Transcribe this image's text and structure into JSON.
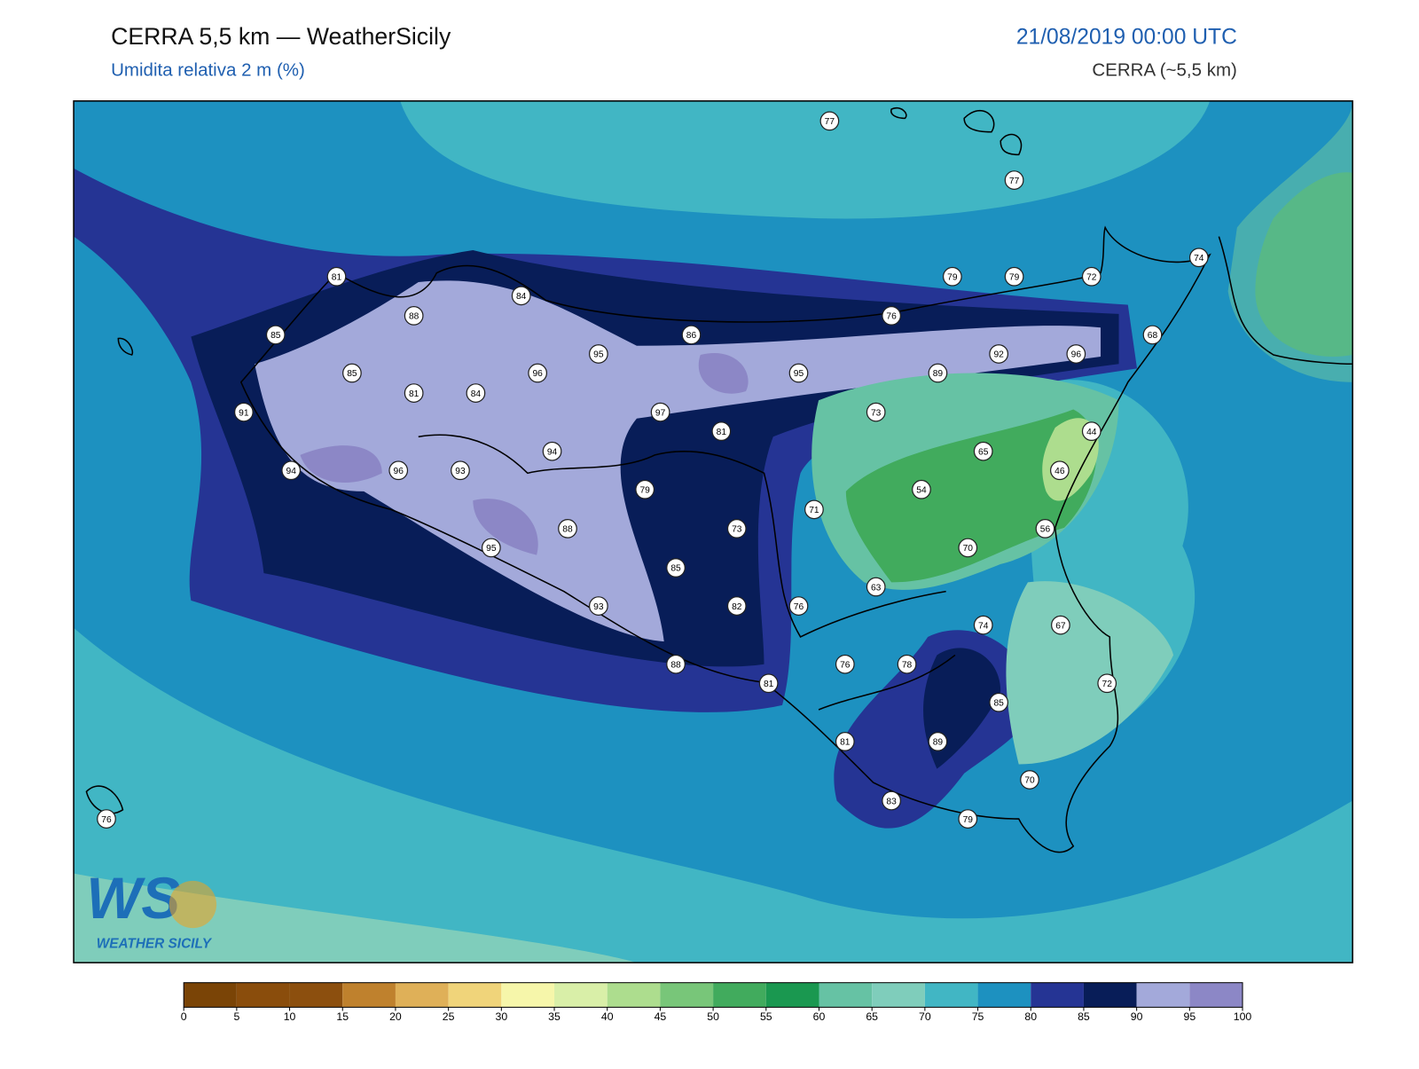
{
  "header": {
    "title": "CERRA 5,5 km — WeatherSicily",
    "subtitle": "Umidita relativa 2 m (%)",
    "datetime": "21/08/2019 00:00 UTC",
    "model": "CERRA (~5,5 km)"
  },
  "stations": [
    77,
    77,
    81,
    84,
    88,
    85,
    85,
    95,
    96,
    81,
    84,
    91,
    97,
    86,
    81,
    95,
    89,
    92,
    96,
    76,
    79,
    79,
    72,
    74,
    68,
    73,
    44,
    65,
    46,
    54,
    56,
    94,
    96,
    93,
    94,
    79,
    71,
    73,
    88,
    95,
    70,
    63,
    85,
    82,
    76,
    93,
    74,
    67,
    88,
    81,
    76,
    78,
    72,
    85,
    81,
    89,
    70,
    83,
    79,
    76
  ],
  "colorbar": {
    "ticks": [
      0,
      5,
      10,
      15,
      20,
      25,
      30,
      35,
      40,
      45,
      50,
      55,
      60,
      65,
      70,
      75,
      80,
      85,
      90,
      95,
      100
    ],
    "colors": [
      "#7a4406",
      "#8a4d0c",
      "#8c4f0e",
      "#bf812d",
      "#dfb058",
      "#f0d47a",
      "#f6f6aa",
      "#d9efa8",
      "#addd8e",
      "#78c679",
      "#41ab5d",
      "#1a9850",
      "#66c2a4",
      "#7fcdbb",
      "#41b6c4",
      "#1d91c0",
      "#253494",
      "#081d58",
      "#a3a9da",
      "#8c87c6"
    ]
  },
  "logo": {
    "mark": "WS",
    "text": "WEATHER SICILY"
  }
}
